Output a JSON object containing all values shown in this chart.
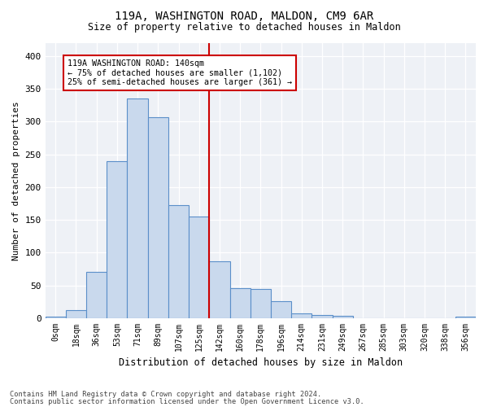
{
  "title1": "119A, WASHINGTON ROAD, MALDON, CM9 6AR",
  "title2": "Size of property relative to detached houses in Maldon",
  "xlabel": "Distribution of detached houses by size in Maldon",
  "ylabel": "Number of detached properties",
  "bar_labels": [
    "0sqm",
    "18sqm",
    "36sqm",
    "53sqm",
    "71sqm",
    "89sqm",
    "107sqm",
    "125sqm",
    "142sqm",
    "160sqm",
    "178sqm",
    "196sqm",
    "214sqm",
    "231sqm",
    "249sqm",
    "267sqm",
    "285sqm",
    "303sqm",
    "320sqm",
    "338sqm",
    "356sqm"
  ],
  "bar_heights": [
    3,
    13,
    71,
    240,
    335,
    307,
    173,
    155,
    87,
    46,
    45,
    26,
    7,
    5,
    4,
    0,
    0,
    0,
    0,
    0,
    3
  ],
  "bar_color": "#c9d9ed",
  "bar_edge_color": "#5b8fc9",
  "vline_color": "#cc0000",
  "annotation_title": "119A WASHINGTON ROAD: 140sqm",
  "annotation_line1": "← 75% of detached houses are smaller (1,102)",
  "annotation_line2": "25% of semi-detached houses are larger (361) →",
  "annotation_box_color": "#cc0000",
  "ylim": [
    0,
    420
  ],
  "yticks": [
    0,
    50,
    100,
    150,
    200,
    250,
    300,
    350,
    400
  ],
  "footer1": "Contains HM Land Registry data © Crown copyright and database right 2024.",
  "footer2": "Contains public sector information licensed under the Open Government Licence v3.0.",
  "bg_color": "#eef1f6"
}
